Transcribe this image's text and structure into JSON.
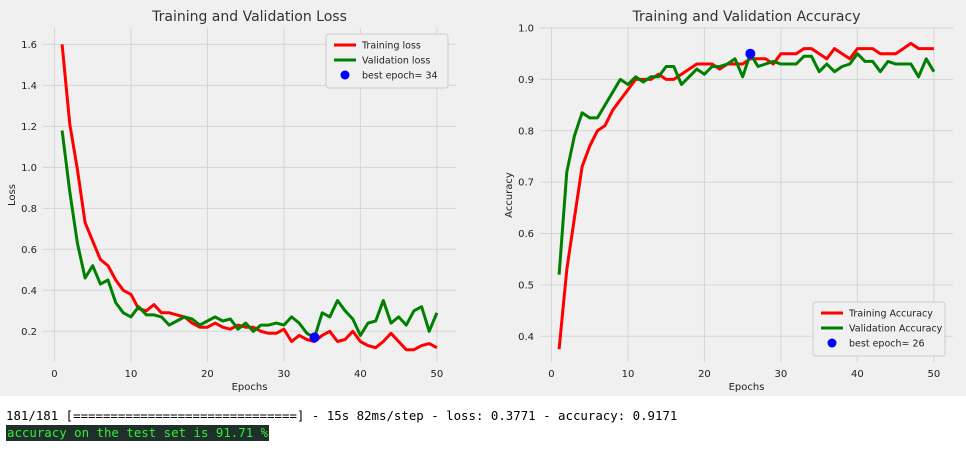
{
  "colors": {
    "figure_bg": "#f0f0f0",
    "axes_bg": "#f0f0f0",
    "grid": "#d5d5d5",
    "training": "#ff0000",
    "validation": "#008000",
    "best": "#0000ff"
  },
  "chart_data": [
    {
      "type": "line",
      "title": "Training and Validation Loss",
      "xlabel": "Epochs",
      "ylabel": "Loss",
      "xlim": [
        -1.5,
        52.5
      ],
      "ylim": [
        0.05,
        1.68
      ],
      "xticks": [
        0,
        10,
        20,
        30,
        40,
        50
      ],
      "yticks": [
        0.2,
        0.4,
        0.6,
        0.8,
        1.0,
        1.2,
        1.4,
        1.6
      ],
      "ytick_decimals": 1,
      "grid": true,
      "legend_position": "top-right",
      "x": [
        1,
        2,
        3,
        4,
        5,
        6,
        7,
        8,
        9,
        10,
        11,
        12,
        13,
        14,
        15,
        16,
        17,
        18,
        19,
        20,
        21,
        22,
        23,
        24,
        25,
        26,
        27,
        28,
        29,
        30,
        31,
        32,
        33,
        34,
        35,
        36,
        37,
        38,
        39,
        40,
        41,
        42,
        43,
        44,
        45,
        46,
        47,
        48,
        49,
        50
      ],
      "series": [
        {
          "name": "Training loss",
          "color": "#ff0000",
          "values": [
            1.6,
            1.21,
            0.99,
            0.73,
            0.64,
            0.55,
            0.52,
            0.45,
            0.4,
            0.38,
            0.31,
            0.3,
            0.33,
            0.29,
            0.29,
            0.28,
            0.27,
            0.24,
            0.22,
            0.22,
            0.24,
            0.22,
            0.21,
            0.23,
            0.22,
            0.22,
            0.2,
            0.19,
            0.19,
            0.21,
            0.15,
            0.18,
            0.16,
            0.15,
            0.18,
            0.2,
            0.15,
            0.16,
            0.2,
            0.15,
            0.13,
            0.12,
            0.15,
            0.19,
            0.15,
            0.11,
            0.11,
            0.13,
            0.14,
            0.12
          ]
        },
        {
          "name": "Validation loss",
          "color": "#008000",
          "values": [
            1.18,
            0.88,
            0.63,
            0.46,
            0.52,
            0.43,
            0.45,
            0.34,
            0.29,
            0.27,
            0.32,
            0.28,
            0.28,
            0.27,
            0.23,
            0.25,
            0.27,
            0.26,
            0.23,
            0.25,
            0.27,
            0.25,
            0.26,
            0.21,
            0.24,
            0.2,
            0.23,
            0.23,
            0.24,
            0.23,
            0.27,
            0.24,
            0.19,
            0.17,
            0.29,
            0.27,
            0.35,
            0.3,
            0.26,
            0.18,
            0.24,
            0.25,
            0.35,
            0.24,
            0.27,
            0.23,
            0.3,
            0.32,
            0.2,
            0.29
          ]
        }
      ],
      "best_point": {
        "label": "best epoch= 34",
        "x": 34,
        "y": 0.17,
        "color": "#0000ff"
      }
    },
    {
      "type": "line",
      "title": "Training and Validation Accuracy",
      "xlabel": "Epochs",
      "ylabel": "Accuracy",
      "xlim": [
        -1.5,
        52.5
      ],
      "ylim": [
        0.35,
        1.0
      ],
      "xticks": [
        0,
        10,
        20,
        30,
        40,
        50
      ],
      "yticks": [
        0.4,
        0.5,
        0.6,
        0.7,
        0.8,
        0.9,
        1.0
      ],
      "ytick_decimals": 1,
      "grid": true,
      "legend_position": "bottom-right",
      "x": [
        1,
        2,
        3,
        4,
        5,
        6,
        7,
        8,
        9,
        10,
        11,
        12,
        13,
        14,
        15,
        16,
        17,
        18,
        19,
        20,
        21,
        22,
        23,
        24,
        25,
        26,
        27,
        28,
        29,
        30,
        31,
        32,
        33,
        34,
        35,
        36,
        37,
        38,
        39,
        40,
        41,
        42,
        43,
        44,
        45,
        46,
        47,
        48,
        49,
        50
      ],
      "series": [
        {
          "name": "Training Accuracy",
          "color": "#ff0000",
          "values": [
            0.375,
            0.53,
            0.63,
            0.73,
            0.77,
            0.8,
            0.81,
            0.84,
            0.86,
            0.88,
            0.9,
            0.9,
            0.9,
            0.91,
            0.9,
            0.9,
            0.91,
            0.92,
            0.93,
            0.93,
            0.93,
            0.92,
            0.93,
            0.93,
            0.93,
            0.94,
            0.94,
            0.94,
            0.93,
            0.95,
            0.95,
            0.95,
            0.96,
            0.96,
            0.95,
            0.94,
            0.96,
            0.95,
            0.94,
            0.96,
            0.96,
            0.96,
            0.95,
            0.95,
            0.95,
            0.96,
            0.97,
            0.96,
            0.96,
            0.96
          ]
        },
        {
          "name": "Validation Accuracy",
          "color": "#008000",
          "values": [
            0.52,
            0.72,
            0.79,
            0.835,
            0.825,
            0.825,
            0.85,
            0.875,
            0.9,
            0.89,
            0.905,
            0.895,
            0.905,
            0.905,
            0.925,
            0.925,
            0.89,
            0.905,
            0.92,
            0.91,
            0.925,
            0.925,
            0.93,
            0.94,
            0.905,
            0.95,
            0.925,
            0.93,
            0.935,
            0.93,
            0.93,
            0.93,
            0.945,
            0.945,
            0.915,
            0.93,
            0.915,
            0.925,
            0.93,
            0.95,
            0.935,
            0.935,
            0.915,
            0.935,
            0.93,
            0.93,
            0.93,
            0.905,
            0.94,
            0.915
          ]
        }
      ],
      "best_point": {
        "label": "best epoch= 26",
        "x": 26,
        "y": 0.95,
        "color": "#0000ff"
      }
    }
  ],
  "console": {
    "line1": "181/181 [==============================] - 15s 82ms/step - loss: 0.3771 - accuracy: 0.9171",
    "line2": "accuracy on the test set is 91.71 %"
  }
}
